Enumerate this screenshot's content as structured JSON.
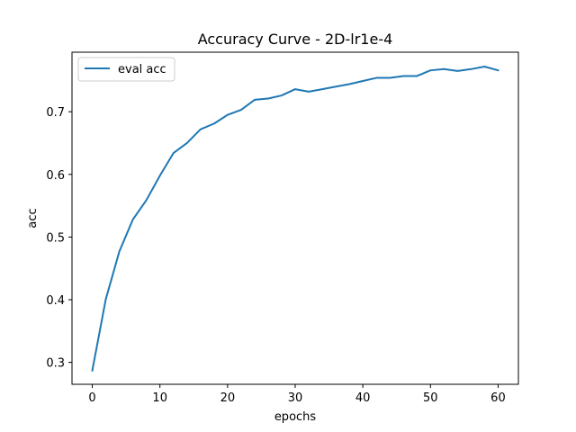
{
  "chart_data": {
    "type": "line",
    "title": "Accuracy Curve - 2D-lr1e-4",
    "xlabel": "epochs",
    "ylabel": "acc",
    "xlim": [
      -3,
      63
    ],
    "ylim": [
      0.265,
      0.795
    ],
    "xticks": [
      0,
      10,
      20,
      30,
      40,
      50,
      60
    ],
    "yticks": [
      0.3,
      0.4,
      0.5,
      0.6,
      0.7
    ],
    "grid": false,
    "legend_position": "top-left",
    "series": [
      {
        "name": "eval acc",
        "color": "#1f77b4",
        "x": [
          0,
          2,
          4,
          6,
          8,
          10,
          12,
          14,
          16,
          18,
          20,
          22,
          24,
          26,
          28,
          30,
          32,
          34,
          36,
          38,
          40,
          42,
          44,
          46,
          48,
          50,
          52,
          54,
          56,
          58,
          60
        ],
        "y": [
          0.287,
          0.401,
          0.477,
          0.528,
          0.559,
          0.598,
          0.634,
          0.65,
          0.672,
          0.681,
          0.695,
          0.703,
          0.719,
          0.721,
          0.726,
          0.736,
          0.732,
          0.736,
          0.74,
          0.744,
          0.749,
          0.754,
          0.754,
          0.757,
          0.757,
          0.766,
          0.768,
          0.765,
          0.768,
          0.772,
          0.766
        ]
      }
    ]
  }
}
